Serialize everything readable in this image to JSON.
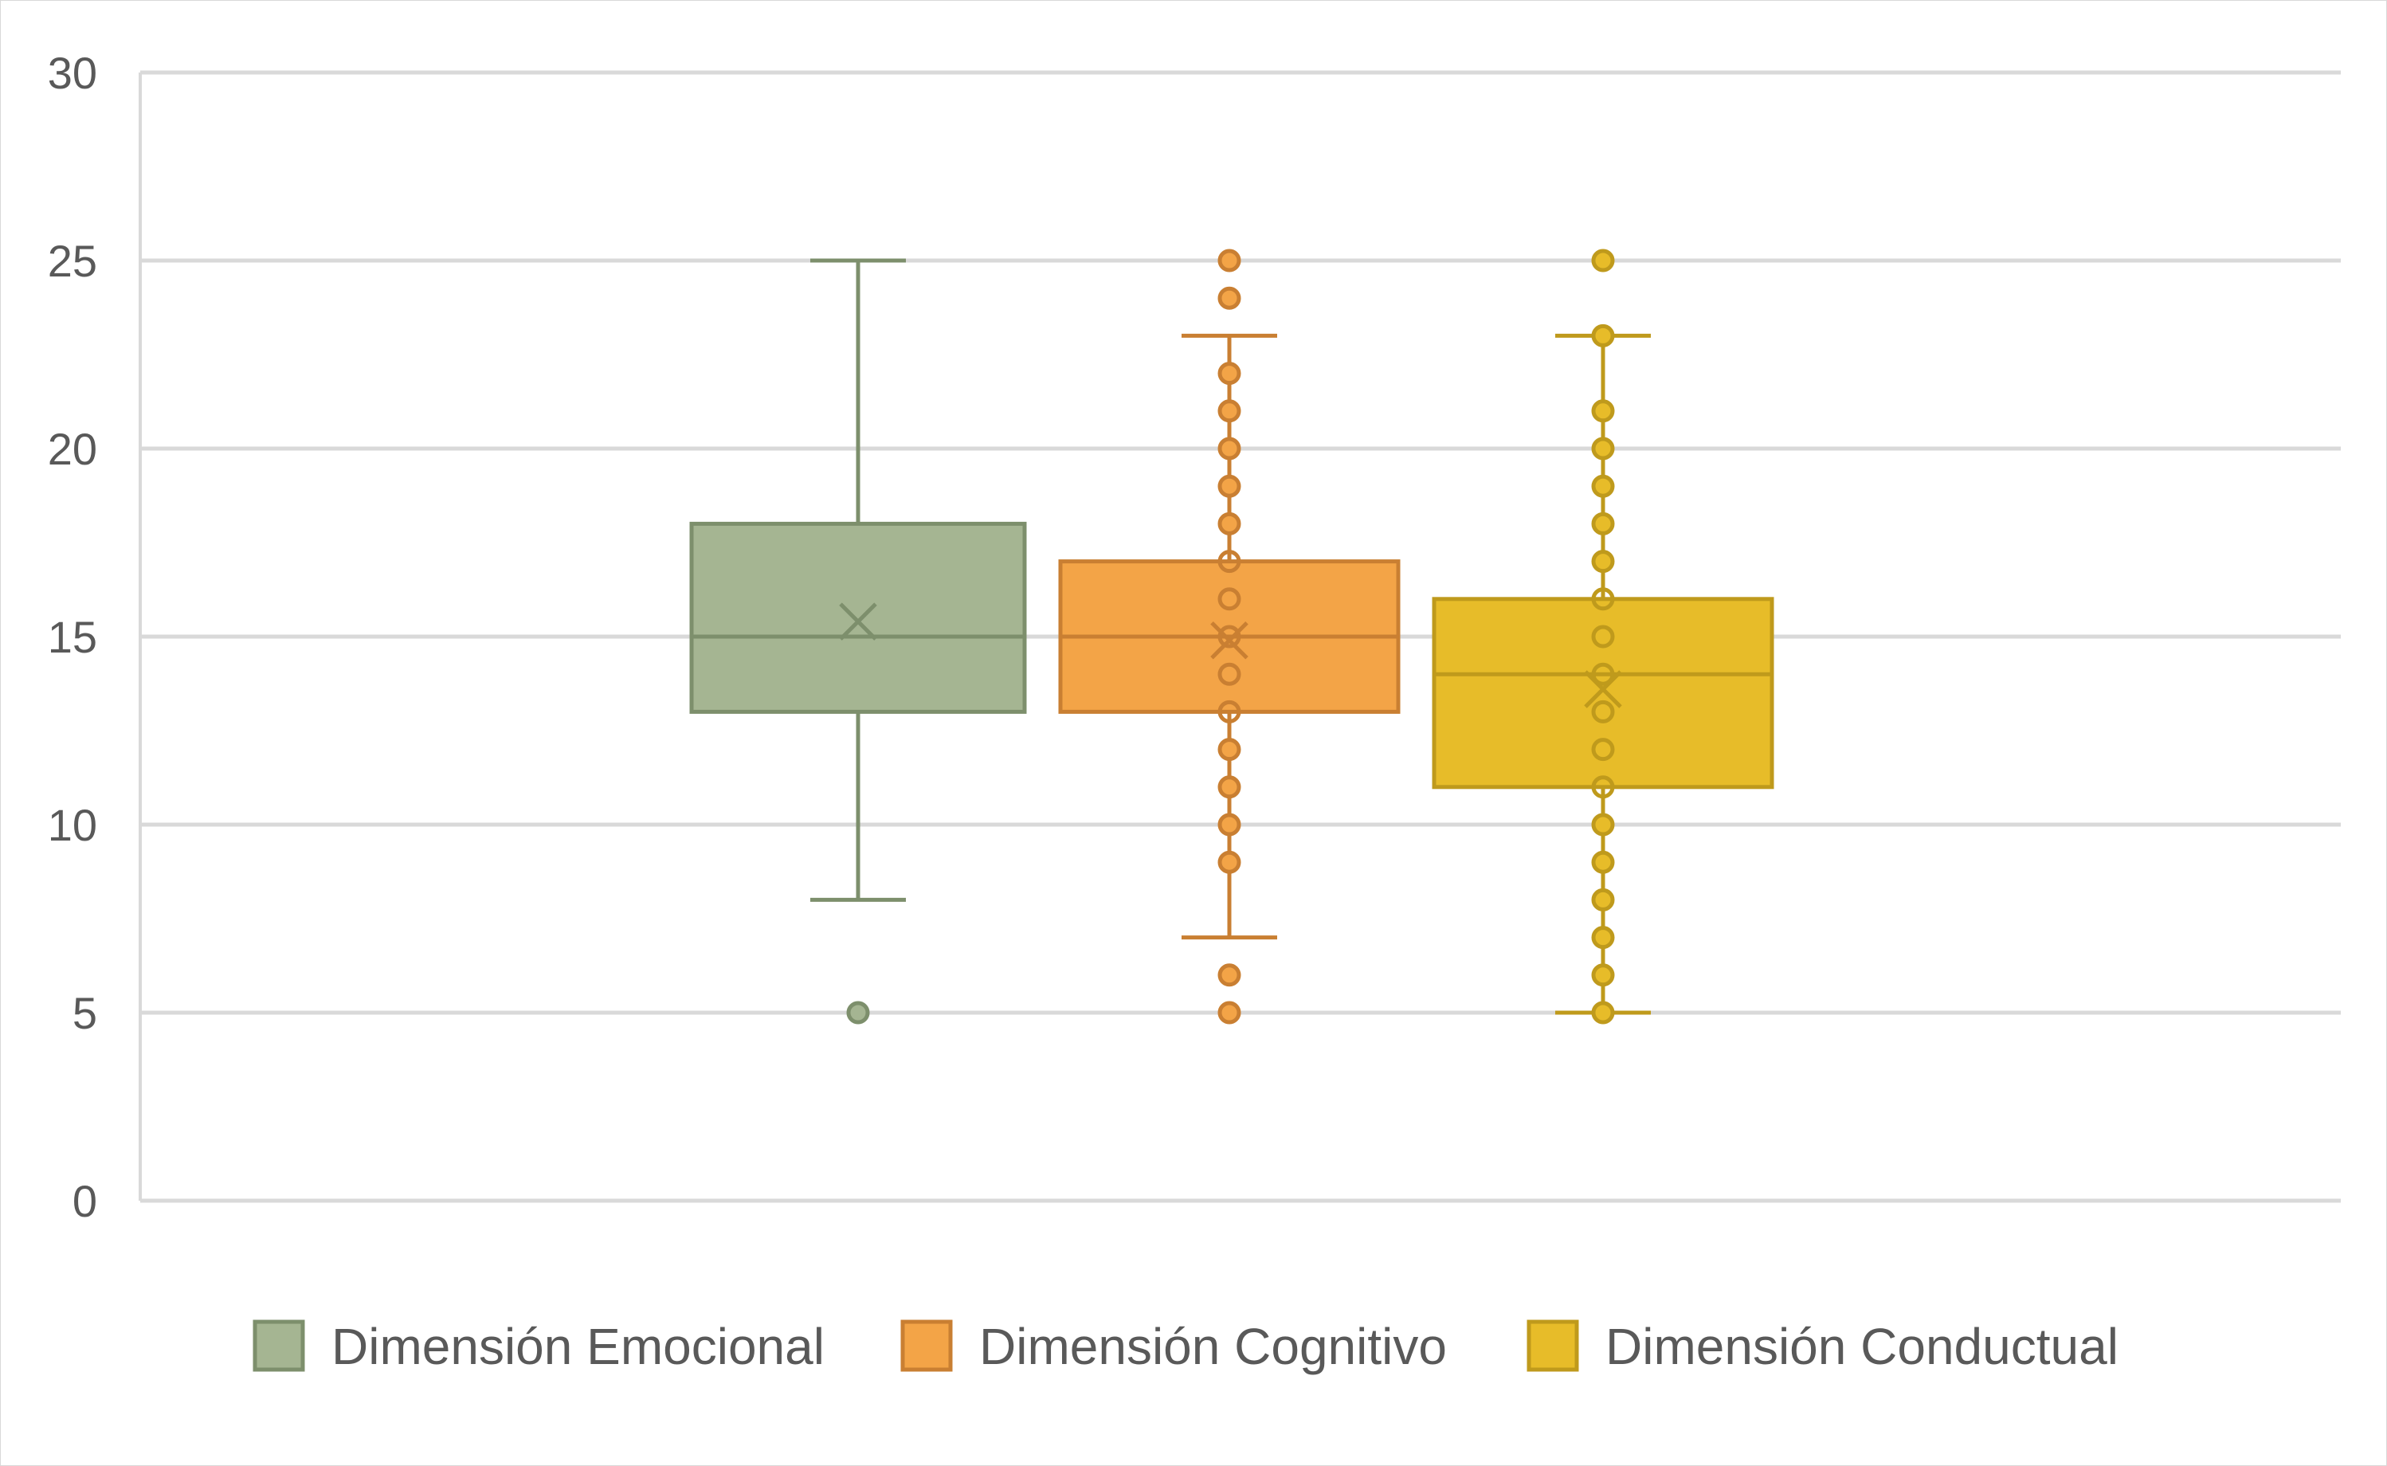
{
  "chart_data": {
    "type": "box",
    "title": "",
    "xlabel": "",
    "ylabel": "",
    "ylim": [
      0,
      30
    ],
    "yticks": [
      0,
      5,
      10,
      15,
      20,
      25,
      30
    ],
    "grid": true,
    "legend_position": "bottom",
    "series": [
      {
        "name": "Dimensión Emocional",
        "color": "#a5b592",
        "stroke": "#7d8f6c",
        "whisker_low": 8,
        "q1": 13,
        "median": 15,
        "q3": 18,
        "whisker_high": 25,
        "mean": 15.4,
        "points": [
          5
        ]
      },
      {
        "name": "Dimensión Cognitivo",
        "color": "#f3a447",
        "stroke": "#c97f32",
        "whisker_low": 7,
        "q1": 13,
        "median": 15,
        "q3": 17,
        "whisker_high": 23,
        "mean": 14.9,
        "points": [
          5,
          6,
          9,
          10,
          11,
          12,
          13,
          14,
          15,
          16,
          17,
          18,
          19,
          20,
          21,
          22,
          24,
          25
        ]
      },
      {
        "name": "Dimensión Conductual",
        "color": "#e7bc29",
        "stroke": "#bf9a1c",
        "whisker_low": 5,
        "q1": 11,
        "median": 14,
        "q3": 16,
        "whisker_high": 23,
        "mean": 13.6,
        "points": [
          5,
          6,
          7,
          8,
          9,
          10,
          11,
          12,
          13,
          14,
          15,
          16,
          17,
          18,
          19,
          20,
          21,
          23,
          25
        ]
      }
    ]
  }
}
